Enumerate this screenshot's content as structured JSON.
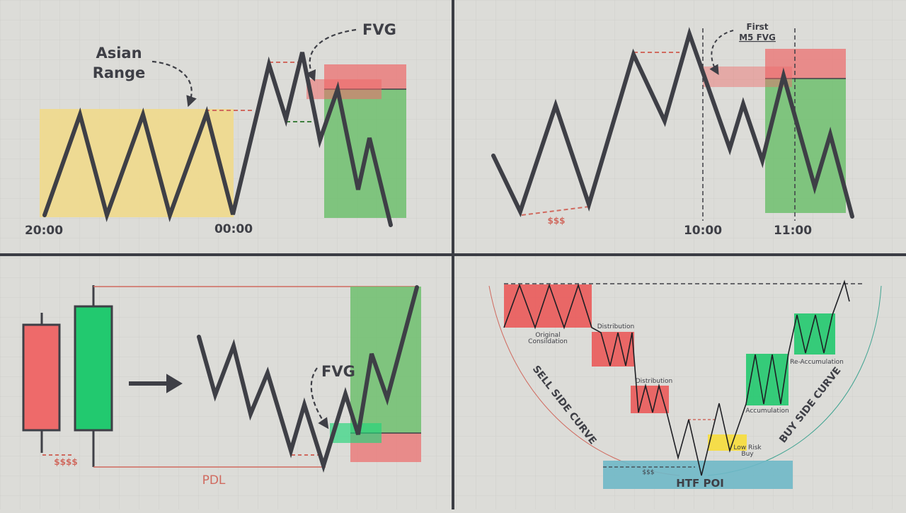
{
  "colors": {
    "background": "#dcdcd8",
    "grid": "#cfcfcb",
    "divider": "#3b3d44",
    "price_line": "#3e3f46",
    "asian_range": "#f0d98c",
    "bearish": "#ea7c7c",
    "bullish": "#6fbf6f",
    "bullish_bright": "#22c96f",
    "htf_poi": "#6fb8c8",
    "low_risk": "#f5dd4a",
    "red_text": "#d06a5f",
    "teal_curve": "#3fa391"
  },
  "panel_top_left": {
    "label_asian_range": [
      "Asian",
      "Range"
    ],
    "label_fvg": "FVG",
    "time_start": "20:00",
    "time_midnight": "00:00"
  },
  "panel_top_right": {
    "label_first_fvg": [
      "First",
      "M5 FVG"
    ],
    "label_liquidity": "$$$",
    "time_ten": "10:00",
    "time_eleven": "11:00"
  },
  "panel_bottom_left": {
    "label_fvg": "FVG",
    "label_liquidity": "$$$$",
    "label_pdl": "PDL"
  },
  "panel_bottom_right": {
    "label_original": [
      "Original",
      "Consildation"
    ],
    "label_distribution_1": "Distribution",
    "label_distribution_2": "Distribution",
    "label_accumulation": "Accumulation",
    "label_reaccumulation": "Re-Accumulation",
    "label_low_risk_buy": [
      "Low Risk",
      "Buy"
    ],
    "label_liquidity": "$$$",
    "label_htf_poi": "HTF POI",
    "label_sell_side": "SELL SIDE CURVE",
    "label_buy_side": "BUY SIDE CURVE"
  }
}
